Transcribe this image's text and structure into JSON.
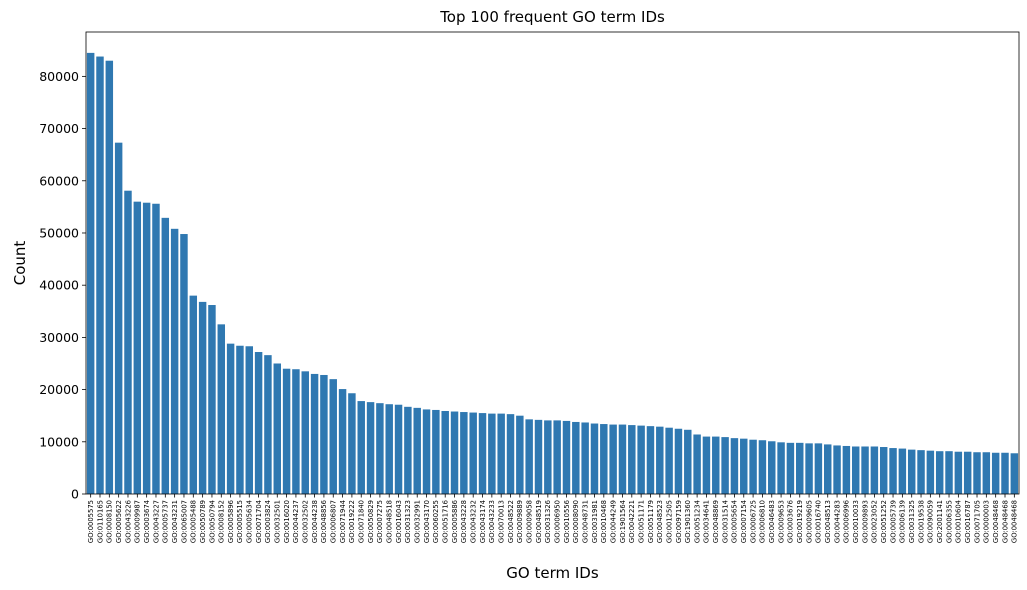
{
  "chart_data": {
    "type": "bar",
    "title": "Top 100 frequent GO term IDs",
    "xlabel": "GO term IDs",
    "ylabel": "Count",
    "ylim": [
      0,
      88500
    ],
    "yticks": [
      0,
      10000,
      20000,
      30000,
      40000,
      50000,
      60000,
      70000,
      80000
    ],
    "grid": false,
    "bar_color": "#2f78b1",
    "categories": [
      "GO:0005575",
      "GO:0110165",
      "GO:0008150",
      "GO:0005622",
      "GO:0043226",
      "GO:0009987",
      "GO:0003674",
      "GO:0043227",
      "GO:0005737",
      "GO:0043231",
      "GO:0065007",
      "GO:0005488",
      "GO:0050789",
      "GO:0050794",
      "GO:0008152",
      "GO:0005896",
      "GO:0005515",
      "GO:0005634",
      "GO:0071704",
      "GO:0003824",
      "GO:0032501",
      "GO:0016020",
      "GO:0044237",
      "GO:0032502",
      "GO:0044238",
      "GO:0048856",
      "GO:0006807",
      "GO:0071944",
      "GO:0019222",
      "GO:0071840",
      "GO:0050829",
      "GO:0007275",
      "GO:0048518",
      "GO:0016043",
      "GO:0031323",
      "GO:0032991",
      "GO:0043170",
      "GO:0060255",
      "GO:0051716",
      "GO:0005886",
      "GO:0043228",
      "GO:0043232",
      "GO:0043174",
      "GO:0043233",
      "GO:0070013",
      "GO:0048522",
      "GO:0009889",
      "GO:0009058",
      "GO:0048519",
      "GO:0031326",
      "GO:0006950",
      "GO:0010556",
      "GO:0008090",
      "GO:0048731",
      "GO:0031981",
      "GO:0010468",
      "GO:0044249",
      "GO:1901564",
      "GO:0042221",
      "GO:0051171",
      "GO:0051179",
      "GO:0048523",
      "GO:0012505",
      "GO:0097159",
      "GO:1901360",
      "GO:0051234",
      "GO:0034641",
      "GO:0048869",
      "GO:0031514",
      "GO:0005654",
      "GO:0007154",
      "GO:0006725",
      "GO:0006810",
      "GO:0046483",
      "GO:0009653",
      "GO:0003676",
      "GO:0019219",
      "GO:0009605",
      "GO:0016740",
      "GO:0048513",
      "GO:0044283",
      "GO:0006996",
      "GO:0010033",
      "GO:0009893",
      "GO:0023052",
      "GO:0051252",
      "GO:0005739",
      "GO:0006139",
      "GO:0031325",
      "GO:0019538",
      "GO:0090059",
      "GO:2001141",
      "GO:0006355",
      "GO:0010604",
      "GO:0016787",
      "GO:0071705",
      "GO:0000003",
      "GO:0048468",
      "GO:0048468",
      "GO:0048468"
    ],
    "values": [
      84500,
      83800,
      83000,
      67300,
      58100,
      56000,
      55800,
      55600,
      52900,
      50800,
      49800,
      38000,
      36800,
      36200,
      32500,
      28800,
      28400,
      28300,
      27200,
      26600,
      25000,
      24000,
      23900,
      23500,
      23000,
      22800,
      22000,
      20100,
      19300,
      17800,
      17600,
      17400,
      17200,
      17100,
      16700,
      16500,
      16200,
      16100,
      15900,
      15800,
      15700,
      15600,
      15500,
      15400,
      15400,
      15300,
      15000,
      14300,
      14200,
      14100,
      14100,
      14000,
      13800,
      13700,
      13500,
      13400,
      13300,
      13300,
      13200,
      13100,
      13000,
      12900,
      12700,
      12500,
      12300,
      11400,
      11000,
      11000,
      10900,
      10700,
      10600,
      10400,
      10300,
      10100,
      9900,
      9800,
      9800,
      9700,
      9700,
      9500,
      9300,
      9200,
      9100,
      9100,
      9100,
      9000,
      8800,
      8700,
      8500,
      8400,
      8300,
      8200,
      8200,
      8100,
      8100,
      8000,
      8000,
      7900,
      7900,
      7800
    ]
  }
}
